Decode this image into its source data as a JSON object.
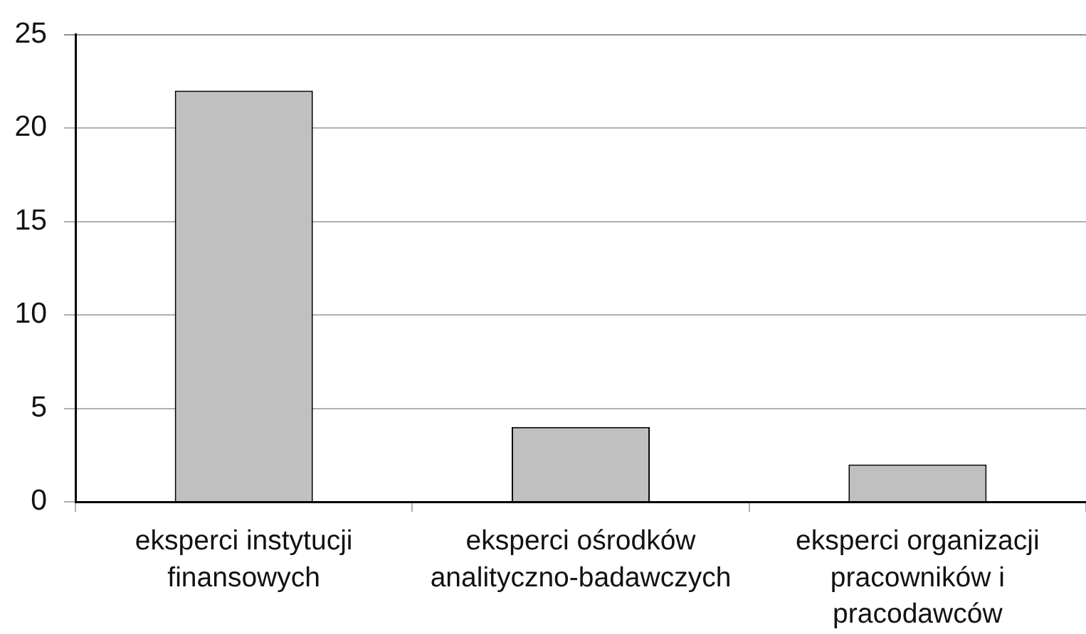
{
  "chart_data": {
    "type": "bar",
    "categories": [
      "eksperci instytucji finansowych",
      "eksperci ośrodków analityczno-badawczych",
      "eksperci organizacji pracowników i pracodawców"
    ],
    "values": [
      22,
      4,
      2
    ],
    "color": "#c0c0c0",
    "ylim": [
      0,
      25
    ],
    "yticks": [
      0,
      5,
      10,
      15,
      20,
      25
    ],
    "grid": "y"
  }
}
